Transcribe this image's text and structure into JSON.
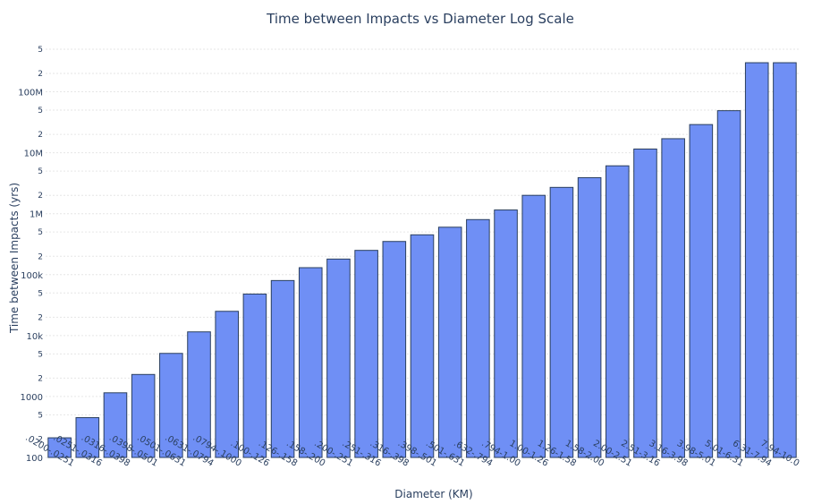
{
  "chart_data": {
    "type": "bar",
    "title": "Time between Impacts vs Diameter Log Scale",
    "xlabel": "Diameter (KM)",
    "ylabel": "Time between Impacts (yrs)",
    "yscale": "log",
    "ylim": [
      100,
      700000000
    ],
    "grid": true,
    "bar_color": "#6f8ff5",
    "text_color": "#2a3f5f",
    "y_major_ticks": [
      {
        "value": 100,
        "label": "100"
      },
      {
        "value": 1000,
        "label": "1000"
      },
      {
        "value": 10000,
        "label": "10k"
      },
      {
        "value": 100000,
        "label": "100k"
      },
      {
        "value": 1000000,
        "label": "1M"
      },
      {
        "value": 10000000,
        "label": "10M"
      },
      {
        "value": 100000000,
        "label": "100M"
      }
    ],
    "y_minor_ticks": [
      {
        "value": 200,
        "label": "2"
      },
      {
        "value": 500,
        "label": "5"
      },
      {
        "value": 2000,
        "label": "2"
      },
      {
        "value": 5000,
        "label": "5"
      },
      {
        "value": 20000,
        "label": "2"
      },
      {
        "value": 50000,
        "label": "5"
      },
      {
        "value": 200000,
        "label": "2"
      },
      {
        "value": 500000,
        "label": "5"
      },
      {
        "value": 2000000,
        "label": "2"
      },
      {
        "value": 5000000,
        "label": "5"
      },
      {
        "value": 20000000,
        "label": "2"
      },
      {
        "value": 50000000,
        "label": "5"
      },
      {
        "value": 200000000,
        "label": "2"
      },
      {
        "value": 500000000,
        "label": "5"
      }
    ],
    "categories": [
      ".0200-.0251",
      ".0251-.0316",
      ".0316-.0398",
      ".0398-.0501",
      ".0501-.0631",
      ".0631-.0794",
      ".0794-.1000",
      ".100-.126",
      ".126-.158",
      ".158-.200",
      ".200-.251",
      ".251-.316",
      ".316-.398",
      ".398-.501",
      ".501-.631",
      ".632-.794",
      ".794-1.00",
      "1.00-1.26",
      "1.26-1.58",
      "1.58-2.00",
      "2.00-2.51",
      "2.51-3.16",
      "3.16-3.98",
      "3.98-5.01",
      "5.01-6.31",
      "6.31-7.94",
      "7.94-10.0"
    ],
    "values": [
      210,
      450,
      1150,
      2300,
      5100,
      11500,
      25000,
      48000,
      80000,
      130000,
      180000,
      250000,
      350000,
      450000,
      600000,
      800000,
      1150000,
      2000000,
      2700000,
      3900000,
      6100000,
      11500000,
      17000000,
      29000000,
      49000000,
      300000000,
      300000000
    ]
  }
}
